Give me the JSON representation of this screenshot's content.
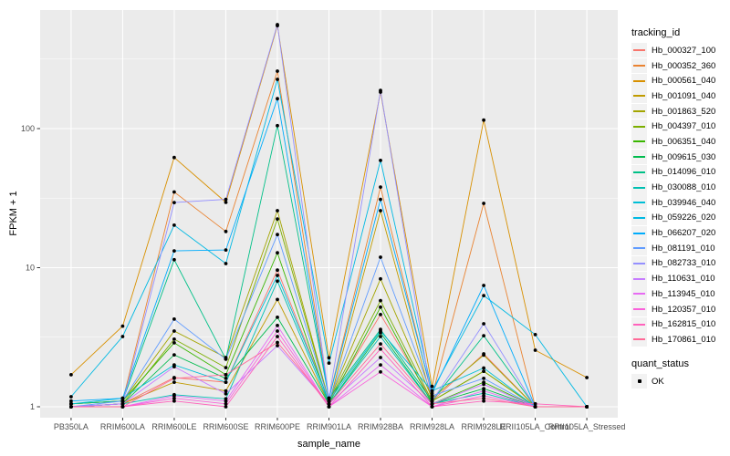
{
  "figure": {
    "background": "#FFFFFF",
    "panel_bg": "#EBEBEB",
    "grid_color": "#FFFFFF",
    "tick_text_color": "#4D4D4D",
    "axis_title_color": "#000000"
  },
  "chart_data": {
    "type": "line",
    "title": "",
    "xlabel": "sample_name",
    "ylabel": "FPKM + 1",
    "y_scale": "log10",
    "y_ticks": [
      "1",
      "10",
      "100"
    ],
    "y_tick_values": [
      1,
      10,
      100
    ],
    "ylim": [
      1,
      600
    ],
    "grid": "on",
    "legend_position": "right",
    "legend_title": "tracking_id",
    "point_color": "#000000",
    "x_categories": [
      "PB350LA",
      "RRIM600LA",
      "RRIM600LE",
      "RRIM600SE",
      "RRIM600PE",
      "RRIM901LA",
      "RRIM928BA",
      "RRIM928LA",
      "RRIM928LE",
      "RRII105LA_Control",
      "RRII105LA_Stressed"
    ],
    "series": [
      {
        "name": "Hb_000327_100",
        "color": "#F8766D",
        "values": [
          1.0,
          1.05,
          1.62,
          1.5,
          9.6,
          1.1,
          4.6,
          1.1,
          2.4,
          1.0,
          1.0
        ]
      },
      {
        "name": "Hb_000352_360",
        "color": "#EA8331",
        "values": [
          1.05,
          1.1,
          35.0,
          18.2,
          259,
          1.15,
          38.0,
          1.2,
          29.0,
          1.0,
          1.0
        ]
      },
      {
        "name": "Hb_000561_040",
        "color": "#D89000",
        "values": [
          1.7,
          3.8,
          62.0,
          29.5,
          550,
          2.25,
          183,
          1.4,
          115,
          2.55,
          1.62
        ]
      },
      {
        "name": "Hb_001091_040",
        "color": "#C09B00",
        "values": [
          1.0,
          1.05,
          1.5,
          1.3,
          5.9,
          1.05,
          25.7,
          1.1,
          1.8,
          1.0,
          1.0
        ]
      },
      {
        "name": "Hb_001863_520",
        "color": "#A3A500",
        "values": [
          1.05,
          1.1,
          3.5,
          2.26,
          25.7,
          1.1,
          8.3,
          1.15,
          2.35,
          1.0,
          1.0
        ]
      },
      {
        "name": "Hb_004397_010",
        "color": "#7CAE00",
        "values": [
          1.0,
          1.05,
          3.06,
          1.91,
          22.4,
          1.1,
          5.8,
          1.1,
          1.8,
          1.0,
          1.0
        ]
      },
      {
        "name": "Hb_006351_040",
        "color": "#39B600",
        "values": [
          1.05,
          1.1,
          2.88,
          1.7,
          12.8,
          1.05,
          5.2,
          1.05,
          1.5,
          1.0,
          1.0
        ]
      },
      {
        "name": "Hb_009615_030",
        "color": "#00BB4E",
        "values": [
          1.0,
          1.05,
          2.36,
          1.6,
          4.4,
          1.05,
          3.4,
          1.05,
          1.35,
          1.0,
          1.0
        ]
      },
      {
        "name": "Hb_014096_010",
        "color": "#00C087",
        "values": [
          1.05,
          1.1,
          11.4,
          2.2,
          105,
          1.15,
          3.6,
          1.1,
          3.24,
          1.0,
          1.0
        ]
      },
      {
        "name": "Hb_030088_010",
        "color": "#00C0B2",
        "values": [
          1.0,
          1.05,
          1.22,
          1.14,
          8.0,
          1.05,
          3.2,
          1.05,
          1.25,
          1.0,
          1.0
        ]
      },
      {
        "name": "Hb_039946_040",
        "color": "#00BFD6",
        "values": [
          1.05,
          1.15,
          2.0,
          1.5,
          8.8,
          1.1,
          3.5,
          1.3,
          1.9,
          1.0,
          1.0
        ]
      },
      {
        "name": "Hb_059226_020",
        "color": "#00B9E3",
        "values": [
          1.18,
          3.2,
          20.2,
          10.7,
          226,
          2.06,
          59.0,
          1.3,
          6.3,
          3.3,
          1.0
        ]
      },
      {
        "name": "Hb_066207_020",
        "color": "#00ACFC",
        "values": [
          1.1,
          1.15,
          13.2,
          13.4,
          164,
          1.15,
          31.0,
          1.25,
          7.45,
          1.0,
          1.0
        ]
      },
      {
        "name": "Hb_081191_010",
        "color": "#619CFF",
        "values": [
          1.0,
          1.1,
          4.27,
          2.2,
          17.3,
          1.1,
          11.9,
          1.2,
          1.6,
          1.0,
          1.0
        ]
      },
      {
        "name": "Hb_082733_010",
        "color": "#9590FF",
        "values": [
          1.0,
          1.05,
          29.4,
          31.0,
          559,
          1.15,
          188,
          1.1,
          3.95,
          1.0,
          1.0
        ]
      },
      {
        "name": "Hb_110631_010",
        "color": "#C77CFF",
        "values": [
          1.0,
          1.05,
          1.94,
          1.24,
          2.75,
          1.05,
          2.26,
          1.05,
          1.45,
          1.0,
          1.0
        ]
      },
      {
        "name": "Hb_113945_010",
        "color": "#E76BF3",
        "values": [
          1.0,
          1.0,
          1.2,
          1.1,
          3.84,
          1.0,
          2.0,
          1.0,
          1.3,
          1.0,
          1.0
        ]
      },
      {
        "name": "Hb_120357_010",
        "color": "#FA62DB",
        "values": [
          1.0,
          1.0,
          1.15,
          1.05,
          3.5,
          1.0,
          1.78,
          1.0,
          1.2,
          1.0,
          1.0
        ]
      },
      {
        "name": "Hb_162815_010",
        "color": "#FF62BC",
        "values": [
          1.0,
          1.0,
          1.1,
          1.0,
          3.2,
          1.0,
          2.6,
          1.0,
          1.1,
          1.05,
          1.0
        ]
      },
      {
        "name": "Hb_170861_010",
        "color": "#FF6A98",
        "values": [
          1.0,
          1.0,
          1.6,
          1.7,
          2.9,
          1.05,
          2.83,
          1.05,
          1.15,
          1.0,
          1.0
        ]
      }
    ],
    "quant_status": {
      "title": "quant_status",
      "items": [
        {
          "label": "OK",
          "marker": "black-point"
        }
      ]
    }
  }
}
